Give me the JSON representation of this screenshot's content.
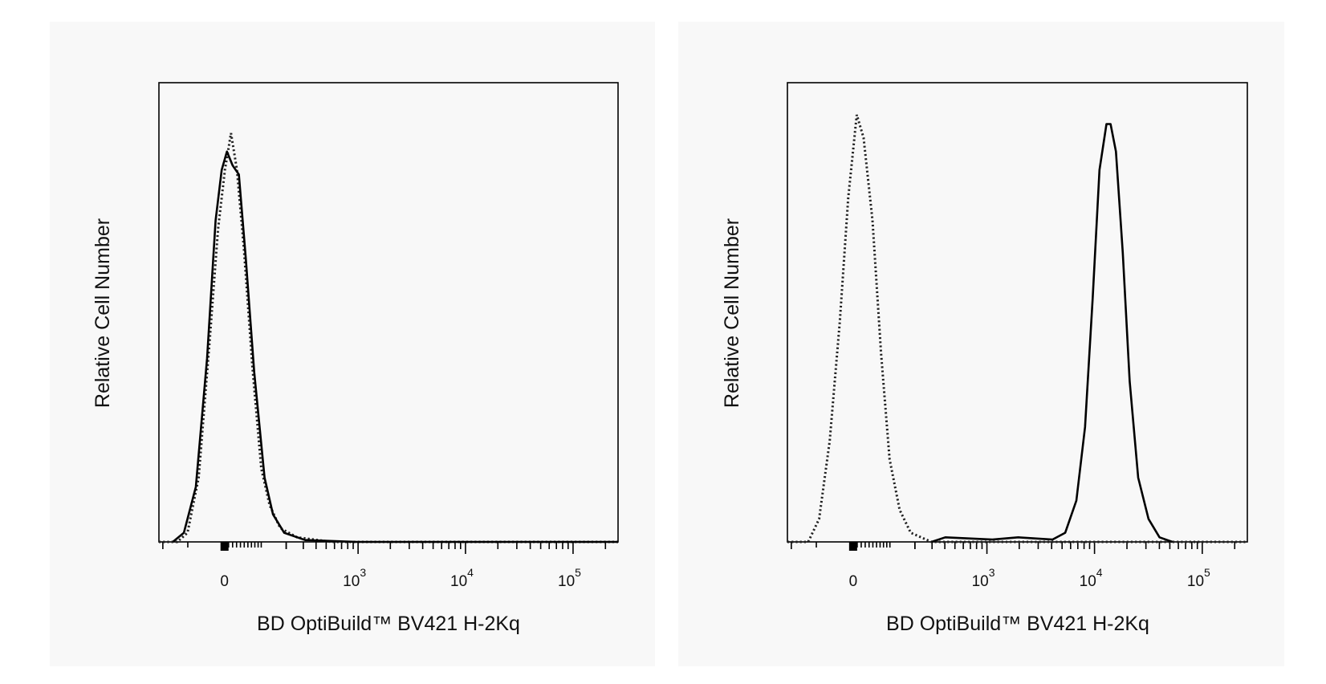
{
  "chart_data": [
    {
      "type": "line",
      "subtype": "flow cytometry histogram",
      "xscale": "biexponential",
      "xlabel": "BD OptiBuild™ BV421 H-2Kq",
      "ylabel": "Relative Cell Number",
      "xlim": [
        -220,
        262000
      ],
      "ylim": [
        0,
        100
      ],
      "xticks": [
        {
          "value": 0,
          "base": "0",
          "exp": ""
        },
        {
          "value": 1000,
          "base": "10",
          "exp": "3"
        },
        {
          "value": 10000,
          "base": "10",
          "exp": "4"
        },
        {
          "value": 100000,
          "base": "10",
          "exp": "5"
        }
      ],
      "grid": false,
      "series": [
        {
          "style": "dotted",
          "x": [
            -137,
            -101,
            -67,
            -37,
            -16,
            1,
            16,
            31,
            49,
            73,
            100,
            129,
            172,
            260,
            565,
            262000
          ],
          "y": [
            0,
            2,
            14,
            44,
            68,
            81,
            89,
            81,
            64,
            38,
            16,
            8,
            3,
            1,
            0,
            0
          ]
        },
        {
          "style": "solid",
          "x": [
            -155,
            -113,
            -75,
            -44,
            -22,
            -7,
            6,
            20,
            36,
            54,
            78,
            111,
            142,
            190,
            313,
            975,
            262000
          ],
          "y": [
            0,
            2,
            12,
            40,
            70,
            81,
            85,
            82,
            80,
            62,
            37,
            14,
            6,
            2,
            0.4,
            0,
            0
          ]
        }
      ]
    },
    {
      "type": "line",
      "subtype": "flow cytometry histogram",
      "xscale": "biexponential",
      "xlabel": "BD OptiBuild™ BV421 H-2Kq",
      "ylabel": "Relative Cell Number",
      "xlim": [
        -220,
        262000
      ],
      "ylim": [
        0,
        100
      ],
      "xticks": [
        {
          "value": 0,
          "base": "0",
          "exp": ""
        },
        {
          "value": 1000,
          "base": "10",
          "exp": "3"
        },
        {
          "value": 10000,
          "base": "10",
          "exp": "4"
        },
        {
          "value": 100000,
          "base": "10",
          "exp": "5"
        }
      ],
      "grid": false,
      "series": [
        {
          "style": "dotted",
          "x": [
            -128,
            -91,
            -60,
            -33,
            -12,
            9,
            26,
            49,
            73,
            99,
            134,
            180,
            296,
            262000
          ],
          "y": [
            0,
            5,
            22,
            48,
            75,
            93,
            88,
            70,
            41,
            18,
            7,
            2,
            0,
            0
          ]
        },
        {
          "style": "solid",
          "x": [
            296,
            404,
            1125,
            1955,
            4070,
            5350,
            6790,
            8170,
            9620,
            11130,
            12900,
            14100,
            15800,
            18300,
            21200,
            25400,
            31700,
            40100,
            52900
          ],
          "y": [
            0,
            1,
            0.5,
            1,
            0.5,
            2,
            9,
            25,
            53,
            81,
            91,
            91,
            85,
            63,
            35,
            14,
            5,
            1,
            0
          ]
        }
      ]
    }
  ]
}
